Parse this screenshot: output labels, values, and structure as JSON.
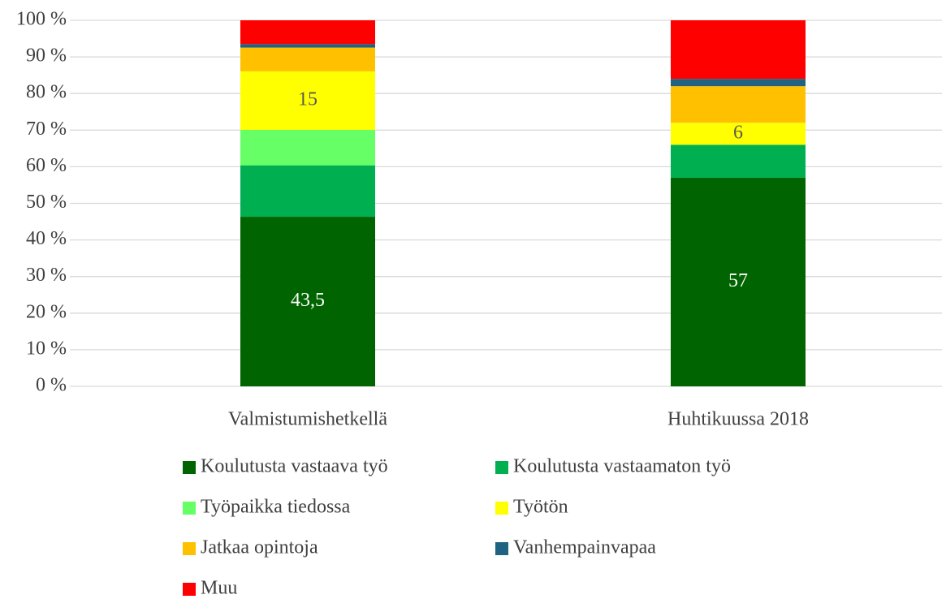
{
  "chart_data": {
    "type": "stacked_bar_100",
    "categories": [
      "Valmistumishetkellä",
      "Huhtikuussa 2018"
    ],
    "series": [
      {
        "name": "Koulutusta vastaava työ",
        "color": "#006400",
        "values": [
          43.5,
          57
        ],
        "value_labels": [
          "43,5",
          "57"
        ],
        "label_color": "#ffffff"
      },
      {
        "name": "Koulutusta vastaamaton työ",
        "color": "#00b050",
        "values": [
          13.2,
          9
        ]
      },
      {
        "name": "Työpaikka tiedossa",
        "color": "#66ff66",
        "values": [
          9.1,
          0
        ]
      },
      {
        "name": "Työtön",
        "color": "#ffff00",
        "values": [
          15,
          6
        ],
        "value_labels": [
          "15",
          "6"
        ],
        "label_color": "#595959"
      },
      {
        "name": "Jatkaa opintoja",
        "color": "#ffc000",
        "values": [
          6.1,
          10
        ]
      },
      {
        "name": "Vanhempainvapaa",
        "color": "#1f6380",
        "values": [
          0.9,
          2
        ]
      },
      {
        "name": "Muu",
        "color": "#ff0000",
        "values": [
          6.1,
          16
        ]
      }
    ],
    "ylim": [
      0,
      100
    ],
    "yticks": [
      {
        "value": 0,
        "label": "0 %"
      },
      {
        "value": 10,
        "label": "10 %"
      },
      {
        "value": 20,
        "label": "20 %"
      },
      {
        "value": 30,
        "label": "30 %"
      },
      {
        "value": 40,
        "label": "40 %"
      },
      {
        "value": 50,
        "label": "50 %"
      },
      {
        "value": 60,
        "label": "60 %"
      },
      {
        "value": 70,
        "label": "70 %"
      },
      {
        "value": 80,
        "label": "80 %"
      },
      {
        "value": 90,
        "label": "90 %"
      },
      {
        "value": 100,
        "label": "100 %"
      }
    ],
    "grid": true
  }
}
